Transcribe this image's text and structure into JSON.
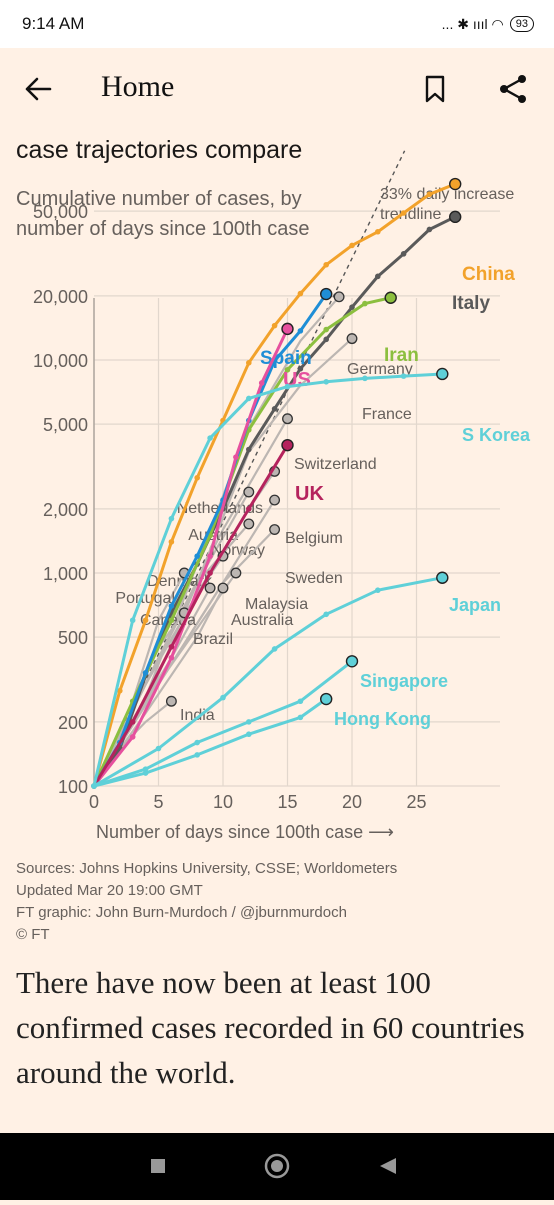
{
  "status_bar": {
    "time": "9:14 AM",
    "signal": "... ✱ ıııl ◠",
    "battery": "93"
  },
  "app_bar": {
    "title": "Home",
    "icons": [
      "back-arrow-icon",
      "bookmark-icon",
      "share-icon"
    ]
  },
  "article": {
    "headline": "case trajectories compare",
    "subtitle": "Cumulative number of cases, by number of days since 100th case",
    "sources": [
      "Sources: Johns Hopkins University, CSSE; Worldometers",
      "Updated Mar 20 19:00 GMT",
      "FT graphic: John Burn-Murdoch / @jburnmurdoch",
      "© FT"
    ],
    "body": "There have now been at least 100 confirmed cases recorded in 60 countries around the world."
  },
  "colors": {
    "background": "#fff1e5",
    "china": "#f2a22b",
    "italy": "#5a5a5a",
    "iran": "#8cbf3f",
    "spain": "#1f8ed6",
    "us": "#e6509e",
    "uk": "#b5235d",
    "korea": "#5fd0d8",
    "grey": "#bcb6b2"
  },
  "chart_data": {
    "type": "line",
    "x_label": "Number of days since 100th case",
    "x_arrow": "⟶",
    "x_ticks": [
      0,
      5,
      10,
      15,
      20,
      25
    ],
    "y_ticks": [
      100,
      200,
      500,
      1000,
      2000,
      5000,
      10000,
      20000,
      50000
    ],
    "y_tick_labels": [
      "100",
      "200",
      "500",
      "1,000",
      "2,000",
      "5,000",
      "10,000",
      "20,000",
      "50,000"
    ],
    "y_scale": "log",
    "xlim": [
      0,
      30
    ],
    "ylim": [
      100,
      60000
    ],
    "trendline": {
      "label_line1": "33% daily increase",
      "label_line2": "trendline",
      "start": [
        0,
        100
      ],
      "daily_growth": 0.33
    },
    "highlighted_series": [
      {
        "name": "China",
        "color": "#f2a22b",
        "x": [
          0,
          2,
          4,
          6,
          8,
          10,
          12,
          14,
          16,
          18,
          20,
          22,
          24,
          26,
          28
        ],
        "y": [
          100,
          280,
          600,
          1400,
          2800,
          5200,
          9700,
          14500,
          20500,
          28000,
          34500,
          40000,
          49000,
          60000,
          67000
        ]
      },
      {
        "name": "Italy",
        "color": "#5a5a5a",
        "x": [
          0,
          2,
          4,
          6,
          8,
          10,
          12,
          14,
          16,
          18,
          20,
          22,
          24,
          26,
          28
        ],
        "y": [
          100,
          150,
          330,
          650,
          1100,
          2000,
          3800,
          5900,
          9100,
          12500,
          17700,
          24700,
          31500,
          41000,
          47000
        ]
      },
      {
        "name": "Iran",
        "color": "#8cbf3f",
        "x": [
          0,
          3,
          6,
          9,
          12,
          15,
          18,
          21,
          23
        ],
        "y": [
          100,
          250,
          600,
          1500,
          4700,
          9000,
          13900,
          18400,
          19600
        ]
      },
      {
        "name": "Spain",
        "color": "#1f8ed6",
        "x": [
          0,
          2,
          4,
          6,
          8,
          10,
          12,
          14,
          16,
          18
        ],
        "y": [
          100,
          160,
          340,
          700,
          1200,
          2200,
          5200,
          9900,
          13700,
          20400
        ]
      },
      {
        "name": "US",
        "color": "#e6509e",
        "x": [
          0,
          3,
          6,
          9,
          11,
          13,
          15
        ],
        "y": [
          100,
          170,
          400,
          1200,
          3500,
          7800,
          14000
        ]
      },
      {
        "name": "UK",
        "color": "#b5235d",
        "x": [
          0,
          3,
          6,
          9,
          12,
          15
        ],
        "y": [
          100,
          200,
          450,
          1000,
          2000,
          3983
        ]
      },
      {
        "name": "S Korea",
        "color": "#5fd0d8",
        "x": [
          0,
          3,
          6,
          9,
          12,
          15,
          18,
          21,
          24,
          27
        ],
        "y": [
          100,
          600,
          1800,
          4300,
          6600,
          7500,
          7900,
          8200,
          8400,
          8600
        ]
      },
      {
        "name": "Japan",
        "color": "#5fd0d8",
        "x": [
          0,
          5,
          10,
          14,
          18,
          22,
          27
        ],
        "y": [
          100,
          150,
          260,
          440,
          640,
          830,
          950
        ]
      },
      {
        "name": "Singapore",
        "color": "#5fd0d8",
        "x": [
          0,
          4,
          8,
          12,
          16,
          20
        ],
        "y": [
          100,
          120,
          160,
          200,
          250,
          385
        ]
      },
      {
        "name": "Hong Kong",
        "color": "#5fd0d8",
        "x": [
          0,
          4,
          8,
          12,
          16,
          18
        ],
        "y": [
          100,
          115,
          140,
          175,
          210,
          256
        ]
      }
    ],
    "labeled_grey_series": [
      {
        "name": "Germany",
        "x": [
          0,
          4,
          8,
          12,
          16,
          19
        ],
        "y": [
          100,
          260,
          1100,
          4800,
          12300,
          19800
        ]
      },
      {
        "name": "France",
        "x": [
          0,
          4,
          8,
          12,
          16,
          20
        ],
        "y": [
          100,
          240,
          900,
          3700,
          7600,
          12600
        ]
      },
      {
        "name": "Switzerland",
        "x": [
          0,
          5,
          10,
          15
        ],
        "y": [
          100,
          400,
          1600,
          5300
        ]
      },
      {
        "name": "Netherlands",
        "x": [
          0,
          4,
          8,
          12,
          14
        ],
        "y": [
          100,
          300,
          800,
          2000,
          3000
        ]
      },
      {
        "name": "Austria",
        "x": [
          0,
          4,
          8,
          12
        ],
        "y": [
          100,
          300,
          900,
          2400
        ]
      },
      {
        "name": "Norway",
        "x": [
          0,
          4,
          8,
          12
        ],
        "y": [
          100,
          300,
          900,
          1700
        ]
      },
      {
        "name": "Belgium",
        "x": [
          0,
          5,
          10,
          14
        ],
        "y": [
          100,
          300,
          900,
          2200
        ]
      },
      {
        "name": "Sweden",
        "x": [
          0,
          5,
          10,
          14
        ],
        "y": [
          100,
          300,
          900,
          1600
        ]
      },
      {
        "name": "Denmark",
        "x": [
          0,
          4,
          8,
          10
        ],
        "y": [
          100,
          300,
          800,
          1200
        ]
      },
      {
        "name": "Portugal",
        "x": [
          0,
          3,
          5,
          7
        ],
        "y": [
          100,
          250,
          600,
          1000
        ]
      },
      {
        "name": "Canada",
        "x": [
          0,
          3,
          6,
          9
        ],
        "y": [
          100,
          200,
          400,
          850
        ]
      },
      {
        "name": "Malaysia",
        "x": [
          0,
          4,
          8,
          11
        ],
        "y": [
          100,
          250,
          550,
          1000
        ]
      },
      {
        "name": "Australia",
        "x": [
          0,
          4,
          8,
          10
        ],
        "y": [
          100,
          220,
          500,
          850
        ]
      },
      {
        "name": "Brazil",
        "x": [
          0,
          3,
          5,
          7
        ],
        "y": [
          100,
          250,
          450,
          650
        ]
      },
      {
        "name": "India",
        "x": [
          0,
          2,
          4,
          6
        ],
        "y": [
          100,
          150,
          200,
          250
        ]
      }
    ]
  }
}
